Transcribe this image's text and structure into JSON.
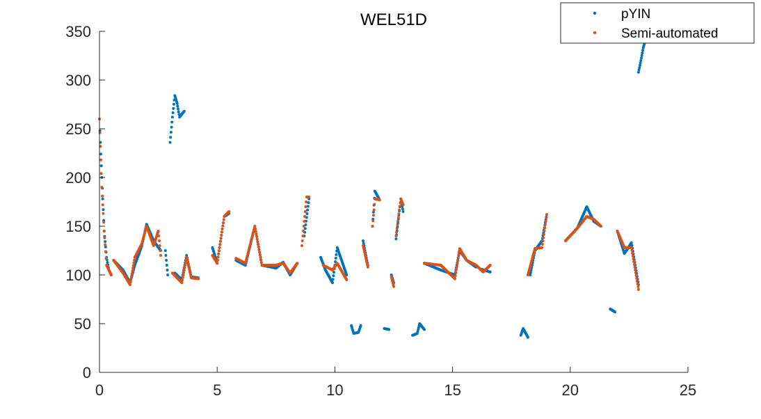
{
  "chart_data": {
    "type": "scatter",
    "title": "WEL51D",
    "xlabel": "",
    "ylabel": "",
    "xlim": [
      0,
      25
    ],
    "ylim": [
      0,
      350
    ],
    "xticks": [
      0,
      5,
      10,
      15,
      20,
      25
    ],
    "yticks": [
      0,
      50,
      100,
      150,
      200,
      250,
      300,
      350
    ],
    "grid": false,
    "legend_position": "top-right",
    "series": [
      {
        "name": "pYIN",
        "color": "#0072BD",
        "trajectories": [
          [
            [
              0.0,
              260
            ],
            [
              0.1,
              200
            ],
            [
              0.2,
              145
            ],
            [
              0.3,
              118
            ],
            [
              0.4,
              105
            ],
            [
              0.5,
              100
            ]
          ],
          [
            [
              0.6,
              115
            ],
            [
              1.0,
              105
            ],
            [
              1.3,
              92
            ],
            [
              1.5,
              110
            ],
            [
              1.8,
              130
            ],
            [
              2.0,
              152
            ],
            [
              2.3,
              135
            ],
            [
              2.6,
              125
            ]
          ],
          [
            [
              2.8,
              125
            ],
            [
              2.9,
              100
            ]
          ],
          [
            [
              3.0,
              236
            ],
            [
              3.1,
              262
            ],
            [
              3.2,
              284
            ],
            [
              3.3,
              276
            ],
            [
              3.4,
              262
            ],
            [
              3.6,
              268
            ]
          ],
          [
            [
              3.2,
              102
            ],
            [
              3.5,
              95
            ],
            [
              3.7,
              120
            ],
            [
              3.9,
              98
            ],
            [
              4.2,
              97
            ]
          ],
          [
            [
              4.8,
              128
            ],
            [
              5.0,
              112
            ],
            [
              5.3,
              160
            ],
            [
              5.5,
              163
            ]
          ],
          [
            [
              5.8,
              115
            ],
            [
              6.2,
              110
            ],
            [
              6.6,
              150
            ],
            [
              6.9,
              110
            ],
            [
              7.5,
              107
            ],
            [
              7.8,
              113
            ],
            [
              8.1,
              100
            ],
            [
              8.4,
              112
            ]
          ],
          [
            [
              8.7,
              140
            ],
            [
              8.9,
              178
            ]
          ],
          [
            [
              9.4,
              118
            ],
            [
              9.6,
              105
            ],
            [
              9.9,
              92
            ],
            [
              10.1,
              128
            ],
            [
              10.5,
              100
            ]
          ],
          [
            [
              10.7,
              48
            ],
            [
              10.8,
              40
            ],
            [
              11.0,
              41
            ],
            [
              11.1,
              48
            ]
          ],
          [
            [
              11.2,
              135
            ],
            [
              11.4,
              110
            ]
          ],
          [
            [
              11.6,
              150
            ],
            [
              11.7,
              186
            ],
            [
              11.9,
              177
            ]
          ],
          [
            [
              12.1,
              45
            ],
            [
              12.3,
              44
            ]
          ],
          [
            [
              12.4,
              100
            ],
            [
              12.5,
              92
            ]
          ],
          [
            [
              12.6,
              137
            ],
            [
              12.8,
              178
            ],
            [
              12.9,
              165
            ]
          ],
          [
            [
              13.3,
              38
            ],
            [
              13.5,
              40
            ],
            [
              13.6,
              50
            ],
            [
              13.8,
              44
            ]
          ],
          [
            [
              13.8,
              112
            ],
            [
              14.5,
              105
            ],
            [
              15.1,
              100
            ],
            [
              15.3,
              125
            ],
            [
              15.6,
              115
            ],
            [
              16.0,
              108
            ]
          ],
          [
            [
              16.2,
              106
            ],
            [
              16.6,
              103
            ]
          ],
          [
            [
              17.9,
              38
            ],
            [
              18.0,
              45
            ],
            [
              18.2,
              36
            ]
          ],
          [
            [
              18.3,
              100
            ],
            [
              18.5,
              125
            ],
            [
              18.8,
              135
            ],
            [
              19.0,
              162
            ]
          ],
          [
            [
              19.8,
              135
            ],
            [
              20.3,
              148
            ],
            [
              20.7,
              170
            ],
            [
              21.0,
              155
            ],
            [
              21.3,
              150
            ]
          ],
          [
            [
              21.7,
              65
            ],
            [
              21.9,
              62
            ]
          ],
          [
            [
              22.0,
              145
            ],
            [
              22.3,
              122
            ],
            [
              22.6,
              133
            ],
            [
              22.9,
              90
            ]
          ],
          [
            [
              22.9,
              308
            ],
            [
              23.0,
              320
            ],
            [
              23.1,
              333
            ],
            [
              23.3,
              350
            ]
          ]
        ]
      },
      {
        "name": "Semi-automated",
        "color": "#D95319",
        "trajectories": [
          [
            [
              0.0,
              260
            ],
            [
              0.1,
              190
            ],
            [
              0.2,
              145
            ],
            [
              0.3,
              110
            ],
            [
              0.5,
              100
            ]
          ],
          [
            [
              0.6,
              115
            ],
            [
              1.0,
              102
            ],
            [
              1.3,
              90
            ],
            [
              1.5,
              118
            ],
            [
              1.8,
              132
            ],
            [
              2.0,
              150
            ],
            [
              2.3,
              130
            ],
            [
              2.5,
              145
            ],
            [
              2.6,
              120
            ]
          ],
          [
            [
              3.1,
              102
            ],
            [
              3.5,
              92
            ],
            [
              3.7,
              118
            ],
            [
              3.9,
              97
            ],
            [
              4.2,
              96
            ]
          ],
          [
            [
              4.8,
              120
            ],
            [
              5.0,
              112
            ],
            [
              5.3,
              160
            ],
            [
              5.5,
              165
            ]
          ],
          [
            [
              5.8,
              117
            ],
            [
              6.2,
              112
            ],
            [
              6.6,
              150
            ],
            [
              6.9,
              110
            ],
            [
              7.5,
              110
            ],
            [
              7.8,
              112
            ],
            [
              8.1,
              102
            ],
            [
              8.4,
              112
            ]
          ],
          [
            [
              8.6,
              130
            ],
            [
              8.8,
              180
            ],
            [
              8.9,
              180
            ]
          ],
          [
            [
              9.5,
              110
            ],
            [
              9.9,
              105
            ],
            [
              10.1,
              112
            ],
            [
              10.5,
              95
            ]
          ],
          [
            [
              11.2,
              130
            ],
            [
              11.4,
              108
            ]
          ],
          [
            [
              11.6,
              150
            ],
            [
              11.7,
              178
            ],
            [
              11.9,
              177
            ]
          ],
          [
            [
              12.4,
              98
            ],
            [
              12.5,
              88
            ]
          ],
          [
            [
              12.6,
              140
            ],
            [
              12.8,
              178
            ],
            [
              12.9,
              172
            ]
          ],
          [
            [
              13.8,
              112
            ],
            [
              14.5,
              110
            ],
            [
              15.1,
              96
            ],
            [
              15.3,
              127
            ],
            [
              15.6,
              115
            ],
            [
              16.0,
              110
            ],
            [
              16.3,
              103
            ],
            [
              16.6,
              110
            ]
          ],
          [
            [
              18.2,
              100
            ],
            [
              18.5,
              127
            ],
            [
              18.8,
              128
            ],
            [
              19.0,
              162
            ]
          ],
          [
            [
              19.8,
              135
            ],
            [
              20.3,
              148
            ],
            [
              20.7,
              160
            ],
            [
              21.0,
              157
            ],
            [
              21.3,
              150
            ]
          ],
          [
            [
              22.0,
              145
            ],
            [
              22.3,
              128
            ],
            [
              22.6,
              128
            ],
            [
              22.9,
              85
            ]
          ]
        ]
      }
    ]
  }
}
